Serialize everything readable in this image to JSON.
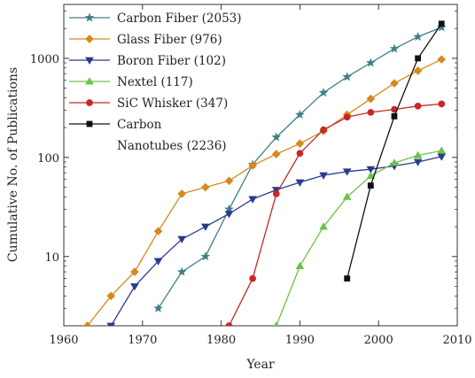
{
  "chart_data": {
    "type": "line",
    "title": "",
    "xlabel": "Year",
    "ylabel": "Cumulative No. of Publications",
    "xlim": [
      1960,
      2010
    ],
    "ylim": [
      2,
      3500
    ],
    "yscale": "log",
    "x_ticks": [
      1960,
      1970,
      1980,
      1990,
      2000,
      2010
    ],
    "y_ticks": [
      10,
      100,
      1000
    ],
    "grid": false,
    "legend_position": "top-left",
    "series": [
      {
        "name": "Carbon Fiber (2053)",
        "legend_lines": [
          "Carbon Fiber (2053)"
        ],
        "color": "#3f7f86",
        "marker": "star",
        "x": [
          1972,
          1975,
          1978,
          1981,
          1984,
          1987,
          1990,
          1993,
          1996,
          1999,
          2002,
          2005,
          2008
        ],
        "y": [
          3,
          7,
          10,
          30,
          85,
          160,
          270,
          450,
          650,
          900,
          1250,
          1650,
          2053
        ]
      },
      {
        "name": "Glass Fiber (976)",
        "legend_lines": [
          "Glass Fiber (976)"
        ],
        "color": "#d48a1c",
        "marker": "diamond",
        "x": [
          1963,
          1966,
          1969,
          1972,
          1975,
          1978,
          1981,
          1984,
          1987,
          1990,
          1993,
          1996,
          1999,
          2002,
          2005,
          2008
        ],
        "y": [
          2,
          4,
          7,
          18,
          43,
          50,
          58,
          83,
          108,
          138,
          185,
          270,
          390,
          560,
          750,
          976
        ]
      },
      {
        "name": "Boron Fiber (102)",
        "legend_lines": [
          "Boron Fiber (102)"
        ],
        "color": "#2b3a8c",
        "marker": "triangle-down",
        "x": [
          1966,
          1969,
          1972,
          1975,
          1978,
          1981,
          1984,
          1987,
          1990,
          1993,
          1996,
          1999,
          2002,
          2005,
          2008
        ],
        "y": [
          2,
          5,
          9,
          15,
          20,
          27,
          38,
          47,
          56,
          66,
          72,
          76,
          82,
          90,
          102
        ]
      },
      {
        "name": "Nextel (117)",
        "legend_lines": [
          "Nextel (117)"
        ],
        "color": "#6cc24a",
        "marker": "triangle-up",
        "x": [
          1987,
          1990,
          1993,
          1996,
          1999,
          2002,
          2005,
          2008
        ],
        "y": [
          2,
          8,
          20,
          40,
          65,
          88,
          105,
          117
        ]
      },
      {
        "name": "SiC Whisker (347)",
        "legend_lines": [
          "SiC Whisker (347)"
        ],
        "color": "#c62828",
        "marker": "circle",
        "x": [
          1981,
          1984,
          1987,
          1990,
          1993,
          1996,
          1999,
          2002,
          2005,
          2008
        ],
        "y": [
          2,
          6,
          43,
          110,
          190,
          255,
          285,
          305,
          330,
          347
        ]
      },
      {
        "name": "Carbon Nanotubes (2236)",
        "legend_lines": [
          "Carbon",
          "Nanotubes (2236)"
        ],
        "color": "#111111",
        "marker": "square",
        "x": [
          1996,
          1999,
          2002,
          2005,
          2008
        ],
        "y": [
          6,
          52,
          260,
          1000,
          2236
        ]
      }
    ]
  }
}
